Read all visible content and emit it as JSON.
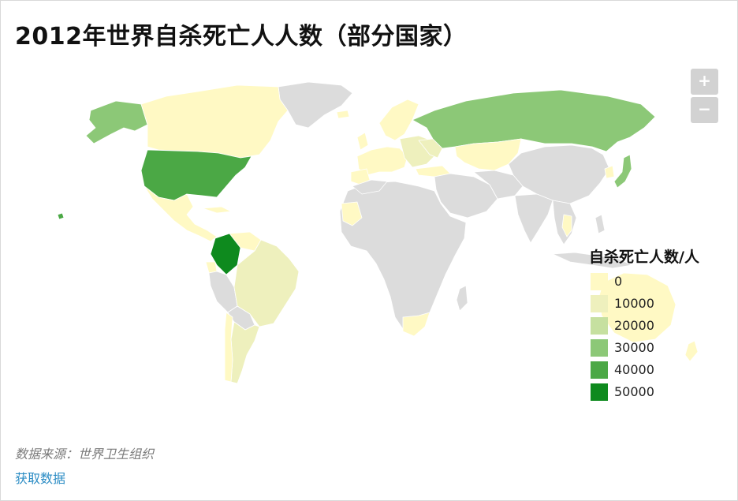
{
  "header": {
    "title": "2012年世界自杀死亡人人数（部分国家）"
  },
  "controls": {
    "zoom_in_label": "+",
    "zoom_out_label": "−"
  },
  "legend": {
    "title": "自杀死亡人数/人",
    "items": [
      {
        "label": "0",
        "color": "#fff9c4"
      },
      {
        "label": "10000",
        "color": "#eef0bd"
      },
      {
        "label": "20000",
        "color": "#c6e0a0"
      },
      {
        "label": "30000",
        "color": "#8cc877"
      },
      {
        "label": "40000",
        "color": "#4ba845"
      },
      {
        "label": "50000",
        "color": "#0e8a1e"
      }
    ]
  },
  "footer": {
    "source": "数据来源：世界卫生组织",
    "link_label": "获取数据"
  },
  "map_colors": {
    "no_data": "#dcdcdc",
    "border": "#ffffff"
  }
}
